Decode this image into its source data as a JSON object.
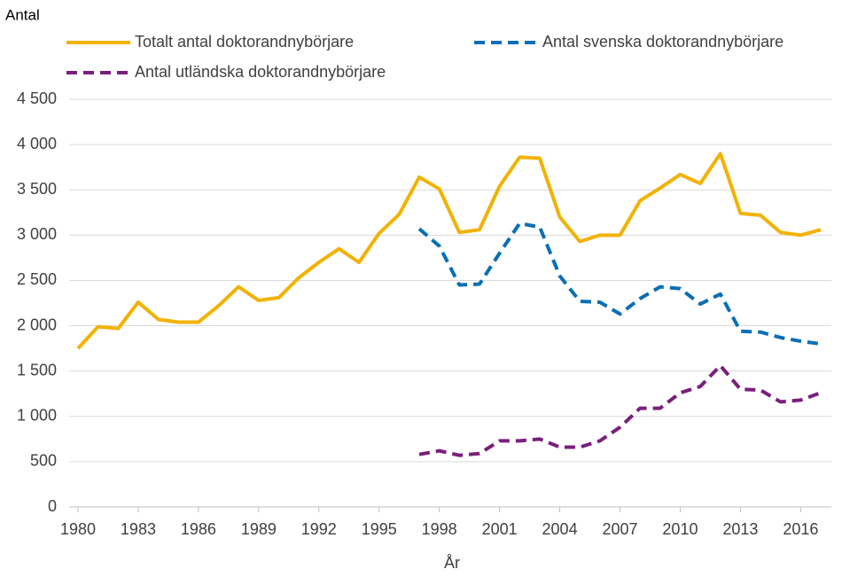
{
  "chart_data": {
    "type": "line",
    "title": "Antal",
    "xlabel": "År",
    "x": [
      1980,
      1981,
      1982,
      1983,
      1984,
      1985,
      1986,
      1987,
      1988,
      1989,
      1990,
      1991,
      1992,
      1993,
      1994,
      1995,
      1996,
      1997,
      1998,
      1999,
      2000,
      2001,
      2002,
      2003,
      2004,
      2005,
      2006,
      2007,
      2008,
      2009,
      2010,
      2011,
      2012,
      2013,
      2014,
      2015,
      2016,
      2017
    ],
    "xlim": [
      1980,
      2017
    ],
    "xticks": [
      1980,
      1983,
      1986,
      1989,
      1992,
      1995,
      1998,
      2001,
      2004,
      2007,
      2010,
      2013,
      2016
    ],
    "ylim": [
      0,
      4500
    ],
    "yticks": [
      0,
      500,
      {
        "value": 1000,
        "label": "1 000"
      },
      {
        "value": 1500,
        "label": "1 500"
      },
      {
        "value": 2000,
        "label": "2 000"
      },
      {
        "value": 2500,
        "label": "2 500"
      },
      {
        "value": 3000,
        "label": "3 000"
      },
      {
        "value": 3500,
        "label": "3 500"
      },
      {
        "value": 4000,
        "label": "4 000"
      },
      {
        "value": 4500,
        "label": "4 500"
      }
    ],
    "grid": true,
    "series": [
      {
        "name": "Totalt antal doktorandnybörjare",
        "color": "#f2b200",
        "dash": false,
        "values": [
          1750,
          1990,
          1970,
          2260,
          2070,
          2040,
          2040,
          2220,
          2430,
          2280,
          2310,
          2530,
          2700,
          2850,
          2700,
          3020,
          3230,
          3640,
          3510,
          3030,
          3060,
          3540,
          3860,
          3850,
          3200,
          2930,
          3000,
          3000,
          3380,
          3520,
          3670,
          3570,
          3900,
          3240,
          3220,
          3030,
          3000,
          3060
        ]
      },
      {
        "name": "Antal svenska doktorandnybörjare",
        "color": "#0a6fb4",
        "dash": true,
        "values": [
          null,
          null,
          null,
          null,
          null,
          null,
          null,
          null,
          null,
          null,
          null,
          null,
          null,
          null,
          null,
          null,
          null,
          3070,
          2880,
          2450,
          2460,
          2800,
          3130,
          3090,
          2550,
          2270,
          2260,
          2130,
          2300,
          2430,
          2410,
          2240,
          2350,
          1940,
          1930,
          1870,
          1830,
          1800
        ]
      },
      {
        "name": "Antal utländska doktorandnybörjare",
        "color": "#7a1f7c",
        "dash": true,
        "values": [
          null,
          null,
          null,
          null,
          null,
          null,
          null,
          null,
          null,
          null,
          null,
          null,
          null,
          null,
          null,
          null,
          null,
          580,
          620,
          570,
          590,
          730,
          730,
          750,
          660,
          660,
          730,
          880,
          1090,
          1090,
          1260,
          1330,
          1560,
          1300,
          1290,
          1160,
          1180,
          1260
        ]
      }
    ]
  }
}
